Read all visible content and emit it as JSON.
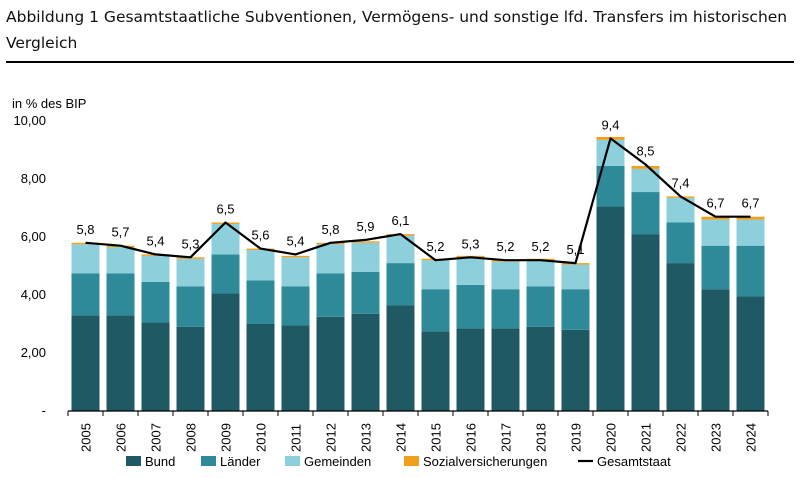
{
  "title": "Abbildung 1 Gesamtstaatliche Subventionen, Vermögens- und sonstige lfd. Transfers im historischen Vergleich",
  "chart_data": {
    "type": "bar",
    "stacked": true,
    "unit_label": "in % des BIP",
    "ylim": [
      0,
      10
    ],
    "yticks": [
      {
        "value": 0,
        "label": "-"
      },
      {
        "value": 2,
        "label": "2,00"
      },
      {
        "value": 4,
        "label": "4,00"
      },
      {
        "value": 6,
        "label": "6,00"
      },
      {
        "value": 8,
        "label": "8,00"
      },
      {
        "value": 10,
        "label": "10,00"
      }
    ],
    "categories": [
      "2005",
      "2006",
      "2007",
      "2008",
      "2009",
      "2010",
      "2011",
      "2012",
      "2013",
      "2014",
      "2015",
      "2016",
      "2017",
      "2018",
      "2019",
      "2020",
      "2021",
      "2022",
      "2023",
      "2024"
    ],
    "series": [
      {
        "name": "Bund",
        "color": "#1f5964",
        "values": [
          3.3,
          3.3,
          3.05,
          2.9,
          4.05,
          3.0,
          2.95,
          3.25,
          3.35,
          3.65,
          2.75,
          2.85,
          2.85,
          2.9,
          2.8,
          7.05,
          6.1,
          5.1,
          4.2,
          3.95
        ]
      },
      {
        "name": "Länder",
        "color": "#2e8a99",
        "values": [
          1.45,
          1.45,
          1.4,
          1.4,
          1.35,
          1.5,
          1.35,
          1.5,
          1.45,
          1.45,
          1.45,
          1.5,
          1.35,
          1.4,
          1.4,
          1.4,
          1.45,
          1.4,
          1.5,
          1.75
        ]
      },
      {
        "name": "Gemeinden",
        "color": "#8dd0dc",
        "values": [
          1.0,
          0.9,
          0.9,
          0.95,
          1.05,
          1.05,
          1.0,
          1.0,
          1.0,
          0.95,
          1.0,
          0.95,
          0.95,
          0.9,
          0.85,
          0.9,
          0.8,
          0.85,
          0.9,
          0.9
        ]
      },
      {
        "name": "Sozialversicherungen",
        "color": "#f0a01e",
        "values": [
          0.05,
          0.05,
          0.05,
          0.05,
          0.05,
          0.05,
          0.05,
          0.05,
          0.05,
          0.05,
          0.05,
          0.05,
          0.05,
          0.05,
          0.05,
          0.1,
          0.1,
          0.05,
          0.1,
          0.1
        ]
      }
    ],
    "line": {
      "name": "Gesamtstaat",
      "color": "#000000",
      "values": [
        5.8,
        5.7,
        5.4,
        5.3,
        6.5,
        5.6,
        5.4,
        5.8,
        5.9,
        6.1,
        5.2,
        5.3,
        5.2,
        5.2,
        5.1,
        9.4,
        8.5,
        7.4,
        6.7,
        6.7
      ],
      "labels": [
        "5,8",
        "5,7",
        "5,4",
        "5,3",
        "6,5",
        "5,6",
        "5,4",
        "5,8",
        "5,9",
        "6,1",
        "5,2",
        "5,3",
        "5,2",
        "5,2",
        "5,1",
        "9,4",
        "8,5",
        "7,4",
        "6,7",
        "6,7"
      ]
    },
    "legend_position": "bottom",
    "grid": false
  }
}
